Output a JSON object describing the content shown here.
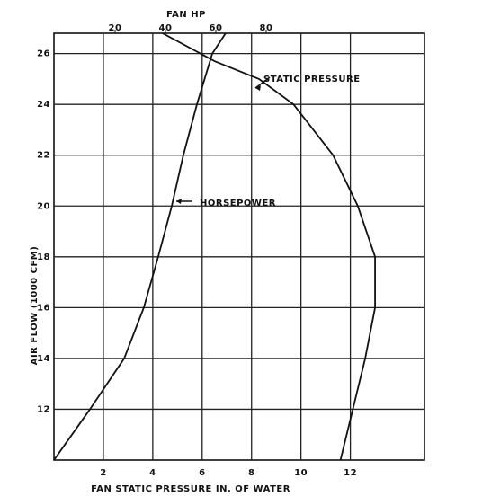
{
  "chart_data": {
    "type": "line",
    "x_label": "FAN STATIC PRESSURE IN. OF WATER",
    "x2_label": "FAN HP",
    "y_label": "AIR FLOW (1000 CFM)",
    "xlim": [
      0,
      15
    ],
    "xticks": [
      2,
      4,
      6,
      8,
      10,
      12
    ],
    "x2lim": [
      -4.3,
      142.9
    ],
    "x2ticks": [
      20,
      40,
      60,
      80
    ],
    "ylim": [
      10,
      26.8
    ],
    "yticks": [
      12,
      14,
      16,
      18,
      20,
      22,
      24,
      26
    ],
    "grid": true,
    "series": [
      {
        "name": "STATIC PRESSURE",
        "color": "#111111",
        "x": [
          11.6,
          12.1,
          12.6,
          13.0,
          13.0,
          12.3,
          11.3,
          9.7,
          8.3,
          6.5,
          4.4
        ],
        "values": [
          10,
          12,
          14,
          16,
          18,
          20,
          22,
          24,
          25,
          25.7,
          26.8
        ]
      },
      {
        "name": "HORSEPOWER",
        "color": "#111111",
        "axis": "x2",
        "x": [
          -4.3,
          10,
          23.6,
          31.4,
          37.1,
          42.5,
          47.1,
          52.5,
          58.6,
          63.9
        ],
        "values": [
          10,
          12,
          14,
          16,
          18,
          20,
          22,
          24,
          26,
          26.8
        ]
      }
    ]
  }
}
